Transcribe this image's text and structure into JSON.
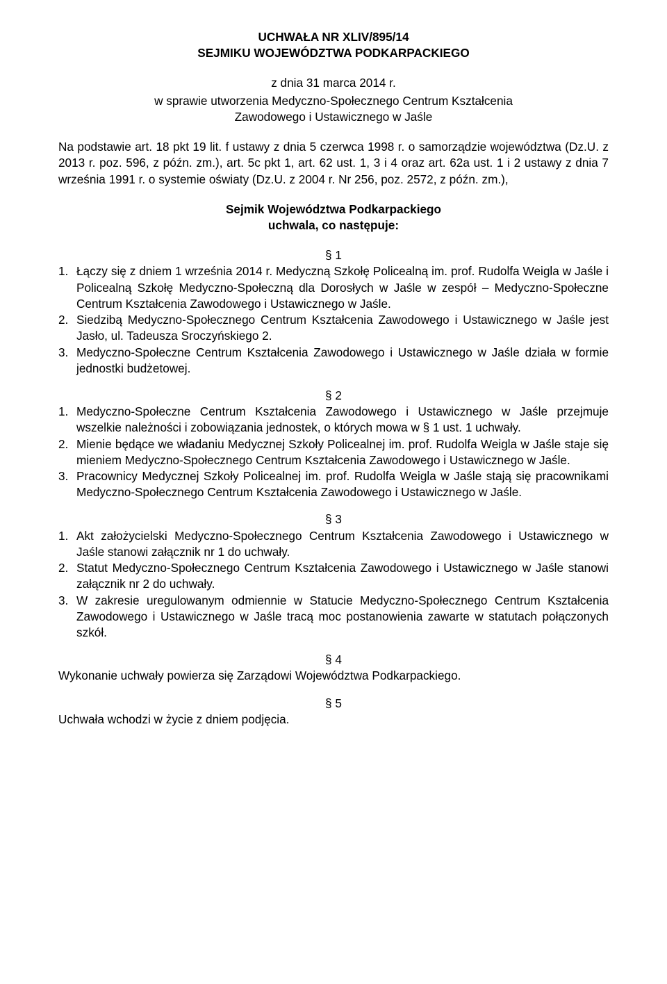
{
  "header": {
    "title_line1": "UCHWAŁA NR XLIV/895/14",
    "title_line2": "SEJMIKU WOJEWÓDZTWA PODKARPACKIEGO",
    "date_line": "z dnia 31 marca 2014 r.",
    "subject_line1": "w sprawie utworzenia Medyczno-Społecznego Centrum Kształcenia",
    "subject_line2": "Zawodowego i Ustawicznego w Jaśle"
  },
  "preamble": "Na podstawie art. 18 pkt 19 lit. f ustawy z dnia 5 czerwca 1998 r. o samorządzie województwa (Dz.U. z 2013 r. poz. 596, z późn. zm.), art. 5c pkt 1, art. 62 ust. 1, 3 i 4 oraz art. 62a ust. 1 i 2 ustawy z dnia 7 września 1991 r. o systemie oświaty (Dz.U. z 2004 r. Nr 256, poz. 2572, z późn. zm.),",
  "enacting": {
    "line1": "Sejmik Województwa Podkarpackiego",
    "line2": "uchwala, co następuje:"
  },
  "sections": {
    "s1": {
      "title": "§ 1",
      "items": [
        {
          "num": "1.",
          "text": "Łączy się z dniem 1 września 2014 r. Medyczną Szkołę Policealną im. prof. Rudolfa Weigla w Jaśle i Policealną Szkołę Medyczno-Społeczną dla Dorosłych w Jaśle w zespół – Medyczno-Społeczne Centrum Kształcenia Zawodowego i Ustawicznego w Jaśle."
        },
        {
          "num": "2.",
          "text": "Siedzibą Medyczno-Społecznego Centrum Kształcenia Zawodowego i Ustawicznego w Jaśle jest Jasło, ul. Tadeusza Sroczyńskiego 2."
        },
        {
          "num": "3.",
          "text": "Medyczno-Społeczne Centrum Kształcenia Zawodowego i Ustawicznego w Jaśle działa w formie jednostki budżetowej."
        }
      ]
    },
    "s2": {
      "title": "§ 2",
      "items": [
        {
          "num": "1.",
          "text": "Medyczno-Społeczne Centrum Kształcenia Zawodowego i Ustawicznego w Jaśle przejmuje wszelkie należności i zobowiązania jednostek, o których mowa w § 1 ust. 1 uchwały."
        },
        {
          "num": "2.",
          "text": "Mienie będące we władaniu Medycznej Szkoły Policealnej im. prof. Rudolfa Weigla w Jaśle staje się mieniem Medyczno-Społecznego Centrum Kształcenia Zawodowego i Ustawicznego w Jaśle."
        },
        {
          "num": "3.",
          "text": "Pracownicy Medycznej Szkoły Policealnej im. prof. Rudolfa Weigla w Jaśle stają się pracownikami Medyczno-Społecznego Centrum Kształcenia Zawodowego i Ustawicznego w Jaśle."
        }
      ]
    },
    "s3": {
      "title": "§ 3",
      "items": [
        {
          "num": "1.",
          "text": "Akt założycielski Medyczno-Społecznego Centrum Kształcenia Zawodowego i Ustawicznego w Jaśle stanowi załącznik nr 1 do uchwały."
        },
        {
          "num": "2.",
          "text": "Statut Medyczno-Społecznego Centrum Kształcenia Zawodowego i Ustawicznego w Jaśle stanowi załącznik nr 2 do uchwały."
        },
        {
          "num": "3.",
          "text": "W zakresie uregulowanym odmiennie w Statucie Medyczno-Społecznego Centrum Kształcenia Zawodowego i Ustawicznego w Jaśle tracą moc postanowienia zawarte w statutach połączonych szkół."
        }
      ]
    },
    "s4": {
      "title": "§ 4",
      "body": "Wykonanie uchwały powierza się Zarządowi Województwa Podkarpackiego."
    },
    "s5": {
      "title": "§ 5",
      "body": "Uchwała wchodzi w życie z dniem podjęcia."
    }
  }
}
